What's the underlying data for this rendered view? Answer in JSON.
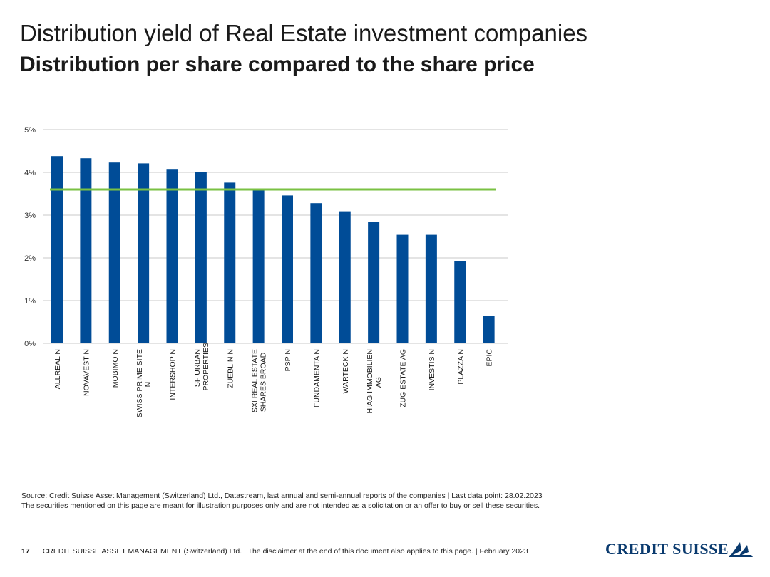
{
  "header": {
    "title": "Distribution yield of Real Estate investment companies",
    "subtitle": "Distribution per share compared to the share price"
  },
  "chart_data": {
    "type": "bar",
    "categories": [
      [
        "ALLREAL N"
      ],
      [
        "NOVAVEST N"
      ],
      [
        "MOBIMO N"
      ],
      [
        "SWISS PRIME SITE",
        "N"
      ],
      [
        "INTERSHOP N"
      ],
      [
        "SF URBAN",
        "PROPERTIES"
      ],
      [
        "ZUEBLIN N"
      ],
      [
        "SXI REAL ESTATE",
        "SHARES BROAD"
      ],
      [
        "PSP N"
      ],
      [
        "FUNDAMENTA N"
      ],
      [
        "WARTECK N"
      ],
      [
        "HIAG IMMOBILIEN",
        "AG"
      ],
      [
        "ZUG ESTATE AG"
      ],
      [
        "INVESTIS N"
      ],
      [
        "PLAZZA N"
      ],
      [
        "EPIC"
      ]
    ],
    "values": [
      4.38,
      4.33,
      4.23,
      4.21,
      4.08,
      4.01,
      3.76,
      3.6,
      3.46,
      3.28,
      3.09,
      2.85,
      2.54,
      2.54,
      1.92,
      0.65
    ],
    "reference_line": 3.6,
    "y_ticks": [
      "0%",
      "1%",
      "2%",
      "3%",
      "4%",
      "5%"
    ],
    "ylim": [
      0,
      5
    ],
    "grid": true,
    "bar_color": "#004c97",
    "line_color": "#7ac143",
    "xlabel": "",
    "ylabel": ""
  },
  "source": {
    "line1": "Source: Credit Suisse Asset Management (Switzerland) Ltd., Datastream, last annual and semi-annual reports of the companies | Last data point: 28.02.2023",
    "line2": "The securities mentioned on this page are meant for illustration purposes only and are not intended as a solicitation or an offer to buy or sell these securities."
  },
  "footer": {
    "page_number": "17",
    "text": "CREDIT SUISSE ASSET MANAGEMENT (Switzerland) Ltd. | The disclaimer at the end of this document also applies to this page. | February 2023"
  },
  "logo": {
    "text": "CREDIT SUISSE",
    "icon": "sails-icon"
  }
}
